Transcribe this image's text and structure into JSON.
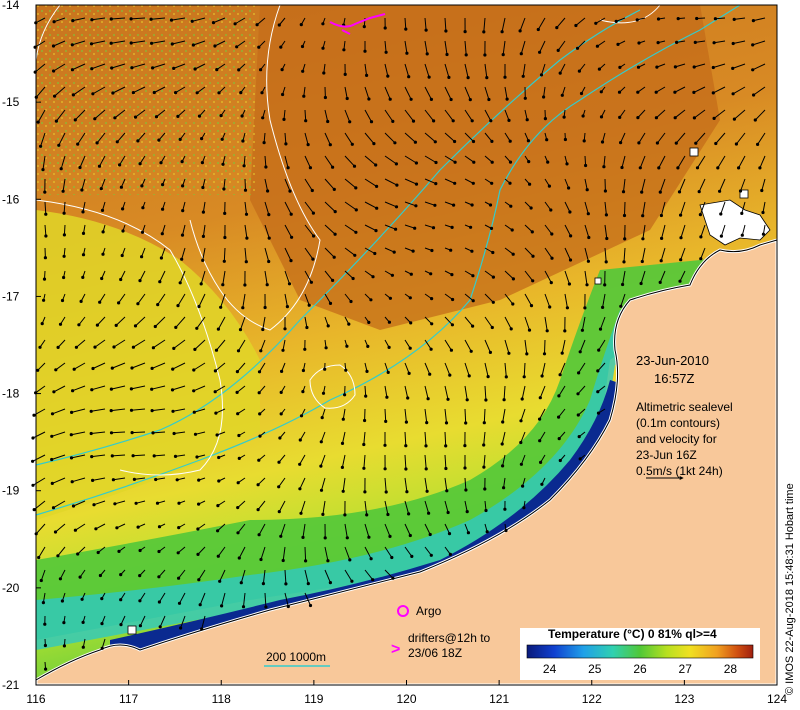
{
  "map": {
    "date": "23-Jun-2010",
    "time": "16:57Z",
    "x_axis": {
      "ticks": [
        "116",
        "117",
        "118",
        "119",
        "120",
        "121",
        "122",
        "123",
        "124"
      ],
      "range": [
        116,
        124
      ]
    },
    "y_axis": {
      "ticks": [
        "-14",
        "-15",
        "-16",
        "-17",
        "-18",
        "-19",
        "-20",
        "-21"
      ],
      "range": [
        -21,
        -14
      ]
    },
    "annotation_lines": [
      "Altimetric sealevel",
      "(0.1m contours)",
      "and velocity for",
      "23-Jun 16Z",
      "0.5m/s (1kt 24h)"
    ],
    "legend": {
      "argo_label": "Argo",
      "drifters_line1": "drifters@12h to",
      "drifters_line2": "23/06 18Z",
      "isobath_label": "200  1000m"
    },
    "colorbar": {
      "title": "Temperature (°C) 0 81% ql>=4",
      "ticks": [
        "24",
        "25",
        "26",
        "27",
        "28"
      ],
      "range": [
        23.5,
        28.5
      ]
    },
    "credit": "© IMOS 22-Aug-2018 15:48:31 Hobart time",
    "colors": {
      "land": "#f8c89a",
      "warm": "#c8721c",
      "cool": "#e8c820",
      "argo": "#ff00ff",
      "drifter": "#ff00ff",
      "isobath": "#33cccc"
    }
  }
}
